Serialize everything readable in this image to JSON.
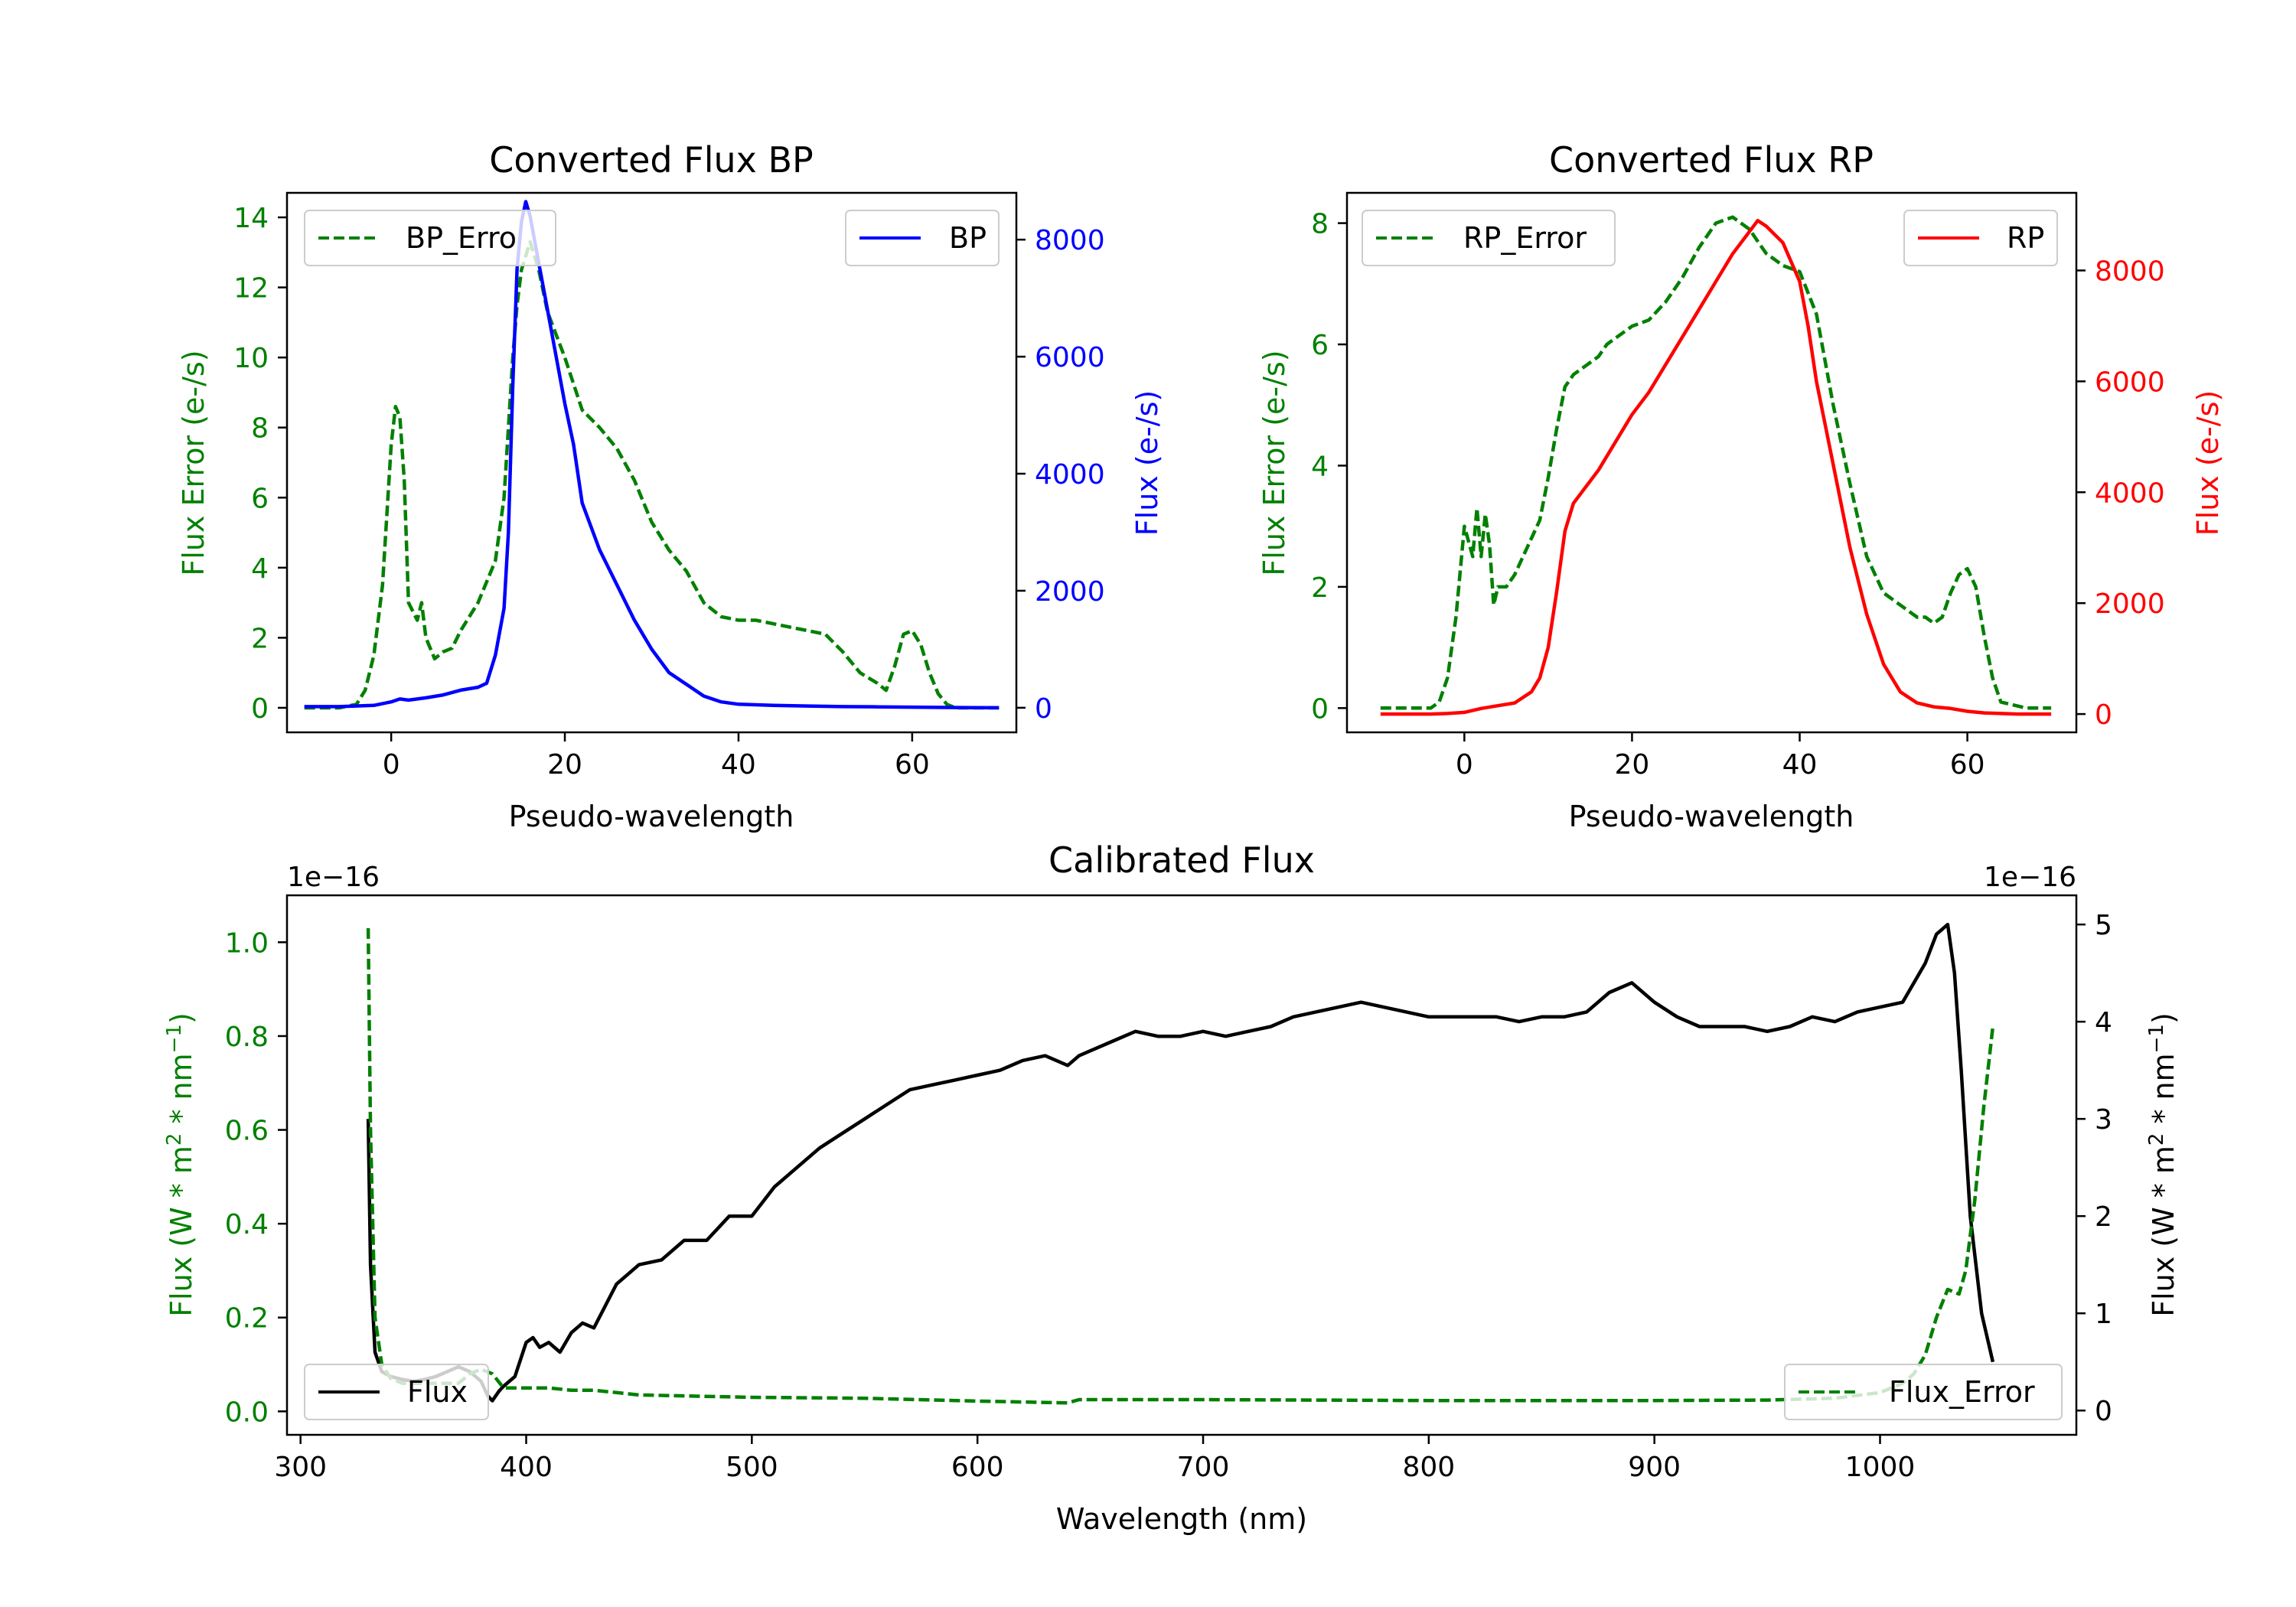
{
  "colors": {
    "green": "#008000",
    "blue": "#0000ff",
    "red": "#ff0000",
    "black": "#000000"
  },
  "chart_data": [
    {
      "type": "line",
      "title": "Converted Flux BP",
      "xlabel": "Pseudo-wavelength",
      "ylabel_left": "Flux Error (e-/s)",
      "ylabel_right": "Flux (e-/s)",
      "xlim": [
        -12,
        72
      ],
      "ylim_left": [
        -0.7,
        14.7
      ],
      "ylim_right": [
        -420,
        8800
      ],
      "xticks": [
        "0",
        "20",
        "40",
        "60"
      ],
      "yticks_left": [
        "0",
        "2",
        "4",
        "6",
        "8",
        "10",
        "12",
        "14"
      ],
      "yticks_right": [
        "0",
        "2000",
        "4000",
        "6000",
        "8000"
      ],
      "legend": [
        "BP_Error",
        "BP"
      ],
      "legend_error_visible_text": "BP_Erro",
      "series_error": {
        "name": "BP_Error",
        "color": "#008000",
        "style": "dashed",
        "x": [
          -10,
          -6,
          -4,
          -3,
          -2,
          -1,
          0,
          0.5,
          1,
          1.5,
          2,
          3,
          3.5,
          4,
          5,
          6,
          7,
          8,
          10,
          12,
          13,
          14,
          14.5,
          15,
          16,
          17,
          18,
          20,
          22,
          24,
          26,
          28,
          30,
          32,
          34,
          36,
          38,
          40,
          42,
          44,
          46,
          48,
          50,
          52,
          54,
          56,
          57,
          58,
          59,
          60,
          61,
          62,
          63,
          64,
          65,
          67,
          70
        ],
        "y": [
          0,
          0,
          0.1,
          0.5,
          1.5,
          3.5,
          7.5,
          8.6,
          8.3,
          6.5,
          3,
          2.5,
          3,
          2,
          1.4,
          1.6,
          1.7,
          2.2,
          3,
          4.2,
          6,
          10,
          11.5,
          12.5,
          13.3,
          12.5,
          11.3,
          10,
          8.5,
          8,
          7.4,
          6.5,
          5.3,
          4.5,
          3.9,
          3,
          2.6,
          2.5,
          2.5,
          2.4,
          2.3,
          2.2,
          2.1,
          1.6,
          1,
          0.7,
          0.5,
          1.2,
          2.1,
          2.2,
          1.8,
          1,
          0.4,
          0.1,
          0,
          0,
          0
        ]
      },
      "series_flux": {
        "name": "BP",
        "color": "#0000ff",
        "style": "solid",
        "x": [
          -10,
          -6,
          -2,
          0,
          1,
          2,
          4,
          6,
          8,
          10,
          11,
          12,
          13,
          13.5,
          14,
          14.5,
          15,
          15.5,
          16,
          17,
          18,
          19,
          20,
          21,
          22,
          24,
          26,
          28,
          30,
          32,
          34,
          36,
          38,
          40,
          44,
          48,
          52,
          56,
          60,
          64,
          70
        ],
        "y": [
          20,
          20,
          40,
          100,
          150,
          130,
          170,
          220,
          300,
          350,
          420,
          900,
          1700,
          3000,
          5500,
          7500,
          8300,
          8650,
          8400,
          7600,
          6800,
          6000,
          5200,
          4500,
          3500,
          2700,
          2100,
          1500,
          1000,
          600,
          400,
          200,
          100,
          60,
          40,
          30,
          20,
          15,
          10,
          5,
          0
        ]
      }
    },
    {
      "type": "line",
      "title": "Converted Flux RP",
      "xlabel": "Pseudo-wavelength",
      "ylabel_left": "Flux Error (e-/s)",
      "ylabel_right": "Flux (e-/s)",
      "xlim": [
        -14,
        73
      ],
      "ylim_left": [
        -0.4,
        8.5
      ],
      "ylim_right": [
        -330,
        9400
      ],
      "xticks": [
        "0",
        "20",
        "40",
        "60"
      ],
      "yticks_left": [
        "0",
        "2",
        "4",
        "6",
        "8"
      ],
      "yticks_right": [
        "0",
        "2000",
        "4000",
        "6000",
        "8000"
      ],
      "legend": [
        "RP_Error",
        "RP"
      ],
      "series_error": {
        "name": "RP_Error",
        "color": "#008000",
        "style": "dashed",
        "x": [
          -10,
          -4,
          -3,
          -2,
          -1,
          0,
          1,
          1.5,
          2,
          2.5,
          3,
          3.5,
          4,
          5,
          6,
          7,
          8,
          9,
          10,
          11,
          12,
          13,
          14,
          15,
          16,
          17,
          18,
          19,
          20,
          22,
          24,
          26,
          28,
          30,
          31,
          32,
          33,
          34,
          35,
          36,
          37,
          38,
          40,
          42,
          44,
          46,
          48,
          50,
          52,
          54,
          55,
          56,
          57,
          58,
          59,
          60,
          61,
          62,
          63,
          64,
          67,
          70
        ],
        "y": [
          0,
          0,
          0.1,
          0.5,
          1.5,
          3,
          2.5,
          3.3,
          2.5,
          3.2,
          2.7,
          1.7,
          2,
          2,
          2.2,
          2.5,
          2.8,
          3.1,
          3.8,
          4.6,
          5.3,
          5.5,
          5.6,
          5.7,
          5.8,
          6.0,
          6.1,
          6.2,
          6.3,
          6.4,
          6.7,
          7.1,
          7.6,
          8.0,
          8.05,
          8.1,
          8.0,
          7.9,
          7.7,
          7.5,
          7.4,
          7.3,
          7.2,
          6.5,
          5,
          3.7,
          2.5,
          1.9,
          1.7,
          1.5,
          1.5,
          1.4,
          1.5,
          1.9,
          2.2,
          2.3,
          2,
          1.2,
          0.5,
          0.1,
          0,
          0
        ]
      },
      "series_flux": {
        "name": "RP",
        "color": "#ff0000",
        "style": "solid",
        "x": [
          -10,
          -4,
          -2,
          0,
          2,
          4,
          6,
          8,
          9,
          10,
          11,
          12,
          13,
          14,
          16,
          18,
          20,
          22,
          24,
          26,
          28,
          30,
          32,
          34,
          35,
          36,
          38,
          40,
          41,
          42,
          44,
          46,
          48,
          50,
          52,
          54,
          56,
          58,
          60,
          62,
          64,
          66,
          70
        ],
        "y": [
          0,
          0,
          10,
          30,
          100,
          150,
          200,
          400,
          650,
          1200,
          2200,
          3300,
          3800,
          4000,
          4400,
          4900,
          5400,
          5800,
          6300,
          6800,
          7300,
          7800,
          8300,
          8700,
          8900,
          8800,
          8500,
          7800,
          7000,
          6000,
          4500,
          3000,
          1800,
          900,
          400,
          200,
          130,
          100,
          50,
          20,
          10,
          0,
          0
        ]
      }
    },
    {
      "type": "line",
      "title": "Calibrated Flux",
      "xlabel": "Wavelength (nm)",
      "ylabel_left": "Flux (W * m$^2$ * nm$^{-1}$)",
      "ylabel_right": "Flux (W * m$^2$ * nm$^{-1}$)",
      "ylabel_left_parts": [
        "Flux (W * m",
        "2",
        " * nm",
        "−1",
        ")"
      ],
      "ylabel_right_parts": [
        "Flux (W * m",
        "2",
        " * nm",
        "−1",
        ")"
      ],
      "offset_left": "1e−16",
      "offset_right": "1e−16",
      "xlim": [
        294,
        1087
      ],
      "ylim_left": [
        -0.05,
        1.1
      ],
      "ylim_right": [
        -0.25,
        5.3
      ],
      "xticks": [
        "300",
        "400",
        "500",
        "600",
        "700",
        "800",
        "900",
        "1000"
      ],
      "yticks_left": [
        "0.0",
        "0.2",
        "0.4",
        "0.6",
        "0.8",
        "1.0"
      ],
      "yticks_right": [
        "0",
        "1",
        "2",
        "3",
        "4",
        "5"
      ],
      "legend": [
        "Flux",
        "Flux_Error"
      ],
      "series_flux": {
        "name": "Flux",
        "color": "#000000",
        "style": "solid",
        "axis": "right",
        "x": [
          330,
          331,
          333,
          336,
          340,
          345,
          350,
          355,
          360,
          365,
          370,
          375,
          380,
          383,
          385,
          388,
          390,
          395,
          400,
          403,
          406,
          410,
          415,
          420,
          425,
          430,
          440,
          450,
          460,
          470,
          480,
          490,
          500,
          510,
          520,
          530,
          540,
          550,
          560,
          570,
          580,
          590,
          600,
          610,
          620,
          630,
          640,
          645,
          650,
          660,
          670,
          680,
          690,
          700,
          710,
          720,
          730,
          740,
          750,
          760,
          770,
          780,
          790,
          800,
          810,
          820,
          830,
          840,
          850,
          860,
          870,
          880,
          890,
          900,
          910,
          920,
          930,
          940,
          950,
          960,
          970,
          980,
          990,
          1000,
          1010,
          1020,
          1025,
          1030,
          1033,
          1036,
          1040,
          1045,
          1050
        ],
        "y": [
          3.0,
          1.5,
          0.6,
          0.4,
          0.35,
          0.32,
          0.3,
          0.32,
          0.35,
          0.4,
          0.45,
          0.4,
          0.3,
          0.15,
          0.1,
          0.2,
          0.25,
          0.35,
          0.7,
          0.75,
          0.65,
          0.7,
          0.6,
          0.8,
          0.9,
          0.85,
          1.3,
          1.5,
          1.55,
          1.75,
          1.75,
          2.0,
          2.0,
          2.3,
          2.5,
          2.7,
          2.85,
          3.0,
          3.15,
          3.3,
          3.35,
          3.4,
          3.45,
          3.5,
          3.6,
          3.65,
          3.55,
          3.65,
          3.7,
          3.8,
          3.9,
          3.85,
          3.85,
          3.9,
          3.85,
          3.9,
          3.95,
          4.05,
          4.1,
          4.15,
          4.2,
          4.15,
          4.1,
          4.05,
          4.05,
          4.05,
          4.05,
          4.0,
          4.05,
          4.05,
          4.1,
          4.3,
          4.4,
          4.2,
          4.05,
          3.95,
          3.95,
          3.95,
          3.9,
          3.95,
          4.05,
          4.0,
          4.1,
          4.15,
          4.2,
          4.6,
          4.9,
          5.0,
          4.5,
          3.5,
          2.0,
          1.0,
          0.5
        ]
      },
      "series_error": {
        "name": "Flux_Error",
        "color": "#008000",
        "style": "dashed",
        "axis": "left",
        "x": [
          330,
          331,
          333,
          336,
          340,
          345,
          350,
          360,
          370,
          375,
          380,
          385,
          390,
          400,
          410,
          420,
          430,
          440,
          450,
          500,
          550,
          600,
          620,
          640,
          645,
          650,
          700,
          750,
          800,
          850,
          900,
          950,
          980,
          1000,
          1010,
          1015,
          1020,
          1025,
          1030,
          1035,
          1038,
          1042,
          1046,
          1050
        ],
        "y": [
          1.03,
          0.6,
          0.2,
          0.1,
          0.07,
          0.06,
          0.06,
          0.06,
          0.06,
          0.08,
          0.09,
          0.08,
          0.05,
          0.05,
          0.05,
          0.045,
          0.045,
          0.04,
          0.035,
          0.03,
          0.028,
          0.022,
          0.02,
          0.018,
          0.025,
          0.025,
          0.025,
          0.024,
          0.023,
          0.023,
          0.023,
          0.024,
          0.028,
          0.04,
          0.06,
          0.08,
          0.12,
          0.2,
          0.26,
          0.25,
          0.3,
          0.45,
          0.65,
          0.82
        ]
      }
    }
  ]
}
